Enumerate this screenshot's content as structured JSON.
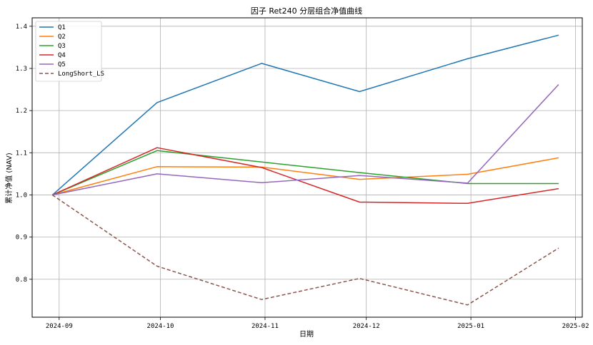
{
  "chart_data": {
    "type": "line",
    "title": "因子 Ret240 分层组合净值曲线",
    "xlabel": "日期",
    "ylabel": "累计净值 (NAV)",
    "x": [
      "2024-08-30",
      "2024-09-30",
      "2024-10-31",
      "2024-11-29",
      "2024-12-31",
      "2025-01-27"
    ],
    "x_ticks": [
      "2024-09-01",
      "2024-10-01",
      "2024-11-01",
      "2024-12-01",
      "2025-01-01",
      "2025-02-01"
    ],
    "x_tick_labels": [
      "2024-09",
      "2024-10",
      "2024-11",
      "2024-12",
      "2025-01",
      "2025-02"
    ],
    "xlim": [
      "2024-08-24",
      "2025-02-03"
    ],
    "ylim": [
      0.71,
      1.42
    ],
    "y_ticks": [
      0.8,
      0.9,
      1.0,
      1.1,
      1.2,
      1.3,
      1.4
    ],
    "y_tick_labels": [
      "0.8",
      "0.9",
      "1.0",
      "1.1",
      "1.2",
      "1.3",
      "1.4"
    ],
    "grid": true,
    "legend_position": "top-left",
    "series": [
      {
        "name": "Q1",
        "color": "#1f77b4",
        "dashed": false,
        "values": [
          1.0,
          1.219,
          1.312,
          1.245,
          1.323,
          1.379
        ]
      },
      {
        "name": "Q2",
        "color": "#ff7f0e",
        "dashed": false,
        "values": [
          1.0,
          1.067,
          1.066,
          1.037,
          1.049,
          1.088
        ]
      },
      {
        "name": "Q3",
        "color": "#2ca02c",
        "dashed": false,
        "values": [
          1.0,
          1.105,
          1.078,
          1.053,
          1.027,
          1.027
        ]
      },
      {
        "name": "Q4",
        "color": "#d62728",
        "dashed": false,
        "values": [
          1.0,
          1.112,
          1.065,
          0.983,
          0.98,
          1.015
        ]
      },
      {
        "name": "Q5",
        "color": "#9467bd",
        "dashed": false,
        "values": [
          1.0,
          1.05,
          1.029,
          1.046,
          1.028,
          1.262
        ]
      },
      {
        "name": "LongShort_LS",
        "color": "#8c564b",
        "dashed": true,
        "values": [
          1.0,
          0.831,
          0.752,
          0.802,
          0.739,
          0.874
        ]
      }
    ]
  }
}
